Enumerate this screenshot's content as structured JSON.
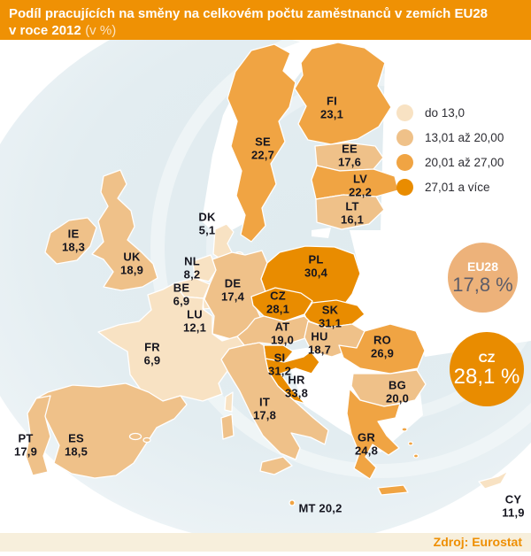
{
  "header": {
    "title_line1": "Podíl pracujících na směny na celkovém počtu zaměstnanců v zemích EU28",
    "title_line2_bold": "v roce 2012",
    "title_line2_light": "(v %)"
  },
  "palette": {
    "1": "#f8e2c3",
    "2": "#efc189",
    "3": "#f0a443",
    "4": "#e98c00",
    "sea": "#e2edf0",
    "header_bg": "#ef9104",
    "label_text": "#15151f",
    "eu_badge_bg": "#edb27a",
    "cz_badge_bg": "#e98c00",
    "footer_bg": "#f7efdc",
    "footer_text": "#ee8f03"
  },
  "legend": {
    "items": [
      {
        "label": "do 13,0",
        "color": "#f8e2c3"
      },
      {
        "label": "13,01 až 20,00",
        "color": "#efc189"
      },
      {
        "label": "20,01 až 27,00",
        "color": "#f0a443"
      },
      {
        "label": "27,01 a více",
        "color": "#e98c00"
      }
    ]
  },
  "badges": {
    "eu28": {
      "label": "EU28",
      "value": "17,8 %"
    },
    "cz": {
      "label": "CZ",
      "value": "28,1 %"
    }
  },
  "footer": {
    "source": "Zdroj: Eurostat"
  },
  "chart_data": {
    "type": "choropleth",
    "title": "Podíl pracujících na směny na celkovém počtu zaměstnanců v zemích EU28 v roce 2012 (v %)",
    "unit": "%",
    "legend_bins": [
      "do 13,0",
      "13,01 až 20,00",
      "20,01 až 27,00",
      "27,01 a více"
    ],
    "eu28_average": "17,8",
    "highlight_country": {
      "code": "CZ",
      "value": "28,1"
    },
    "source": "Zdroj: Eurostat",
    "countries": [
      {
        "code": "FI",
        "value": "23,1",
        "category": "3"
      },
      {
        "code": "SE",
        "value": "22,7",
        "category": "3"
      },
      {
        "code": "EE",
        "value": "17,6",
        "category": "2"
      },
      {
        "code": "LV",
        "value": "22,2",
        "category": "3"
      },
      {
        "code": "LT",
        "value": "16,1",
        "category": "2"
      },
      {
        "code": "DK",
        "value": "5,1",
        "category": "1"
      },
      {
        "code": "IE",
        "value": "18,3",
        "category": "2"
      },
      {
        "code": "UK",
        "value": "18,9",
        "category": "2"
      },
      {
        "code": "NL",
        "value": "8,2",
        "category": "1"
      },
      {
        "code": "BE",
        "value": "6,9",
        "category": "1"
      },
      {
        "code": "LU",
        "value": "12,1",
        "category": "1"
      },
      {
        "code": "DE",
        "value": "17,4",
        "category": "2"
      },
      {
        "code": "FR",
        "value": "6,9",
        "category": "1"
      },
      {
        "code": "PL",
        "value": "30,4",
        "category": "4"
      },
      {
        "code": "CZ",
        "value": "28,1",
        "category": "4"
      },
      {
        "code": "SK",
        "value": "31,1",
        "category": "4"
      },
      {
        "code": "AT",
        "value": "19,0",
        "category": "2"
      },
      {
        "code": "HU",
        "value": "18,7",
        "category": "2"
      },
      {
        "code": "SI",
        "value": "31,2",
        "category": "4"
      },
      {
        "code": "HR",
        "value": "33,8",
        "category": "4"
      },
      {
        "code": "RO",
        "value": "26,9",
        "category": "3"
      },
      {
        "code": "BG",
        "value": "20,0",
        "category": "2"
      },
      {
        "code": "IT",
        "value": "17,8",
        "category": "2"
      },
      {
        "code": "PT",
        "value": "17,9",
        "category": "2"
      },
      {
        "code": "ES",
        "value": "18,5",
        "category": "2"
      },
      {
        "code": "GR",
        "value": "24,8",
        "category": "3"
      },
      {
        "code": "MT",
        "value": "20,2",
        "category": "3",
        "inline": true
      },
      {
        "code": "CY",
        "value": "11,9",
        "category": "1"
      }
    ]
  }
}
